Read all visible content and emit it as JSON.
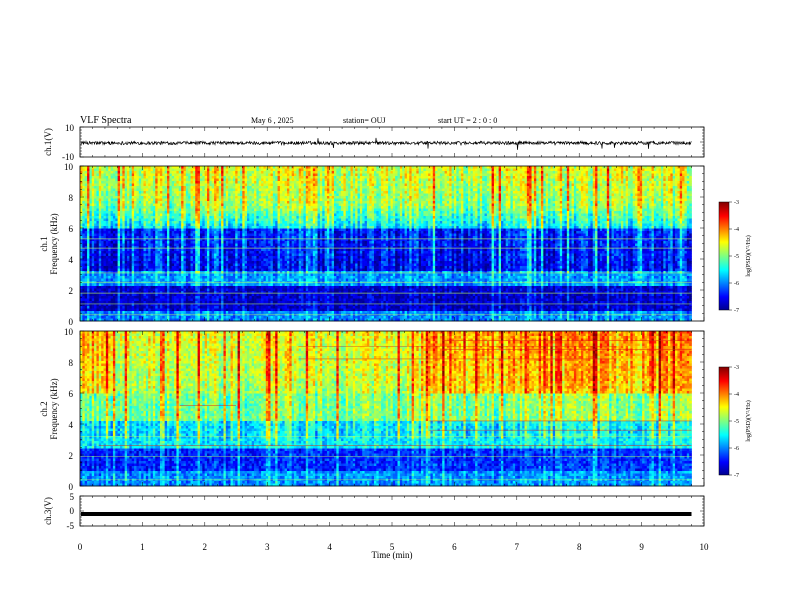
{
  "header": {
    "title": "VLF Spectra",
    "date": "May 6 , 2025",
    "station": "station= OUJ",
    "start_time": "start  UT =   2 : 0  : 0"
  },
  "chart_data": [
    {
      "type": "line",
      "name": "ch1-waveform",
      "ylabel": "ch.1(V)",
      "ylim": [
        -10,
        10
      ],
      "yticks": [
        10,
        -10
      ],
      "xlim": [
        0,
        10
      ],
      "baseline": 0
    },
    {
      "type": "heatmap",
      "name": "ch1-spectrogram",
      "ylabel": "Frequency  (kHz)",
      "channel_label": "ch.1",
      "ylim": [
        0,
        10
      ],
      "yticks": [
        0,
        2,
        4,
        6,
        8,
        10
      ],
      "xlim": [
        0,
        10
      ],
      "data_end_min": 9.8,
      "colorbar": {
        "ticks": [
          -3,
          -4,
          -5,
          -6,
          -7
        ],
        "range": [
          -7,
          -3
        ],
        "label": "log(PSD)(V²/Hz)"
      }
    },
    {
      "type": "heatmap",
      "name": "ch2-spectrogram",
      "ylabel": "Frequency  (kHz)",
      "channel_label": "ch.2",
      "ylim": [
        0,
        10
      ],
      "yticks": [
        0,
        2,
        4,
        6,
        8,
        10
      ],
      "xlim": [
        0,
        10
      ],
      "data_end_min": 9.8,
      "colorbar": {
        "ticks": [
          -3,
          -4,
          -5,
          -6,
          -7
        ],
        "range": [
          -7,
          -3
        ],
        "label": "log(PSD)(V²/Hz)"
      }
    },
    {
      "type": "line",
      "name": "ch3-waveform",
      "ylabel": "ch.3(V)",
      "ylim": [
        -5,
        5
      ],
      "yticks": [
        5,
        0,
        -5
      ],
      "xlim": [
        0,
        10
      ],
      "baseline": -1
    }
  ],
  "xaxis": {
    "label": "Time  (min)",
    "ticks": [
      "0",
      "1",
      "2",
      "3",
      "4",
      "5",
      "6",
      "7",
      "8",
      "9",
      "10"
    ]
  },
  "colors": {
    "jet": [
      "#00008f",
      "#0000ff",
      "#00ffff",
      "#80ff80",
      "#ffff00",
      "#ff0000",
      "#800000"
    ]
  }
}
